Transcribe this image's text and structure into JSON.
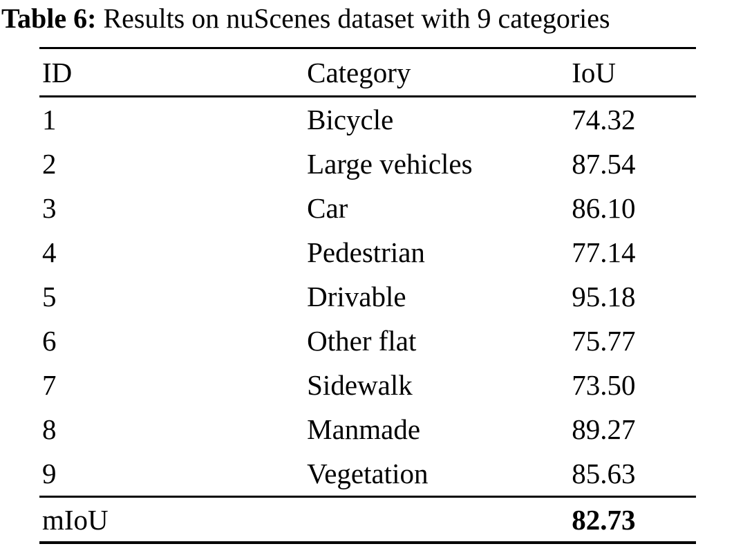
{
  "table": {
    "caption_label": "Table 6:",
    "caption_text": " Results on nuScenes dataset with 9 categories",
    "columns": {
      "id": "ID",
      "category": "Category",
      "iou": "IoU"
    },
    "rows": [
      {
        "id": "1",
        "category": "Bicycle",
        "iou": "74.32"
      },
      {
        "id": "2",
        "category": "Large vehicles",
        "iou": "87.54"
      },
      {
        "id": "3",
        "category": "Car",
        "iou": "86.10"
      },
      {
        "id": "4",
        "category": "Pedestrian",
        "iou": "77.14"
      },
      {
        "id": "5",
        "category": "Drivable",
        "iou": "95.18"
      },
      {
        "id": "6",
        "category": "Other flat",
        "iou": "75.77"
      },
      {
        "id": "7",
        "category": "Sidewalk",
        "iou": "73.50"
      },
      {
        "id": "8",
        "category": "Manmade",
        "iou": "89.27"
      },
      {
        "id": "9",
        "category": "Vegetation",
        "iou": "85.63"
      }
    ],
    "footer": {
      "label": "mIoU",
      "value": "82.73"
    }
  }
}
